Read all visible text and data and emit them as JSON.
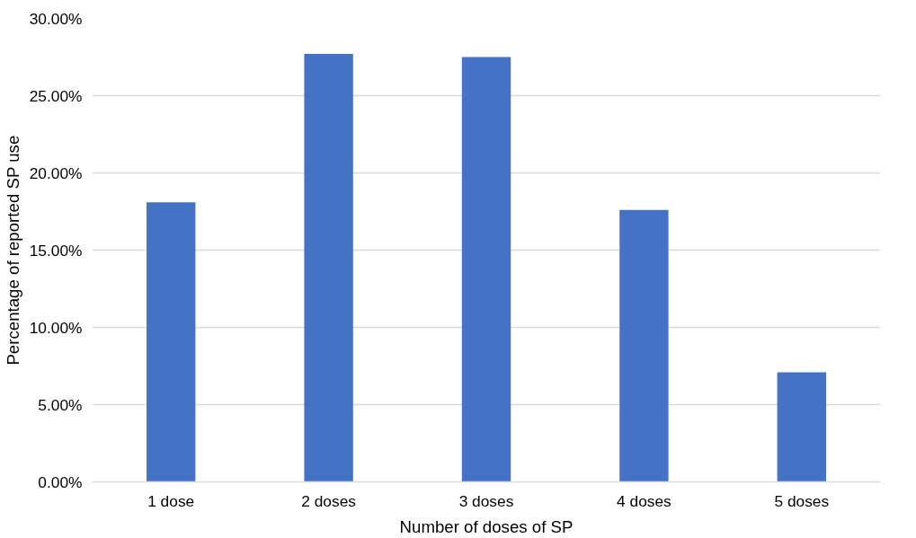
{
  "chart_data": {
    "type": "bar",
    "xlabel": "Number of doses of SP",
    "ylabel": "Percentage of reported SP use",
    "categories": [
      "1 dose",
      "2 doses",
      "3 doses",
      "4 doses",
      "5 doses"
    ],
    "values": [
      18.1,
      27.7,
      27.5,
      17.6,
      7.1
    ],
    "color": "#4472c4",
    "ylim": [
      0,
      30
    ],
    "yticks": [
      {
        "value": 0,
        "label": "0.00%"
      },
      {
        "value": 5,
        "label": "5.00%"
      },
      {
        "value": 10,
        "label": "10.00%"
      },
      {
        "value": 15,
        "label": "15.00%"
      },
      {
        "value": 20,
        "label": "20.00%"
      },
      {
        "value": 25,
        "label": "25.00%"
      },
      {
        "value": 30,
        "label": "30.00%"
      }
    ],
    "grid": "y"
  }
}
